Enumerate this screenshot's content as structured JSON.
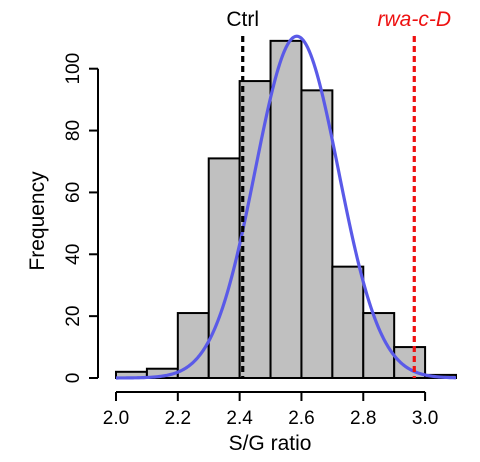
{
  "chart_data": {
    "type": "bar",
    "xlabel": "S/G ratio",
    "ylabel": "Frequency",
    "xlim": [
      2.0,
      3.1
    ],
    "ylim": [
      0,
      110
    ],
    "bin_width": 0.1,
    "bins": [
      {
        "start": 2.0,
        "end": 2.1,
        "value": 2
      },
      {
        "start": 2.1,
        "end": 2.2,
        "value": 3
      },
      {
        "start": 2.2,
        "end": 2.3,
        "value": 21
      },
      {
        "start": 2.3,
        "end": 2.4,
        "value": 71
      },
      {
        "start": 2.4,
        "end": 2.5,
        "value": 96
      },
      {
        "start": 2.5,
        "end": 2.6,
        "value": 109
      },
      {
        "start": 2.6,
        "end": 2.7,
        "value": 93
      },
      {
        "start": 2.7,
        "end": 2.8,
        "value": 36
      },
      {
        "start": 2.8,
        "end": 2.9,
        "value": 21
      },
      {
        "start": 2.9,
        "end": 3.0,
        "value": 10
      },
      {
        "start": 3.0,
        "end": 3.1,
        "value": 1
      }
    ],
    "x_ticks": [
      {
        "value": 2.0,
        "label": "2.0"
      },
      {
        "value": 2.2,
        "label": "2.2"
      },
      {
        "value": 2.4,
        "label": "2.4"
      },
      {
        "value": 2.6,
        "label": "2.6"
      },
      {
        "value": 2.8,
        "label": "2.8"
      },
      {
        "value": 3.0,
        "label": "3.0"
      }
    ],
    "y_ticks": [
      {
        "value": 0,
        "label": "0"
      },
      {
        "value": 20,
        "label": "20"
      },
      {
        "value": 40,
        "label": "40"
      },
      {
        "value": 60,
        "label": "60"
      },
      {
        "value": 80,
        "label": "80"
      },
      {
        "value": 100,
        "label": "100"
      }
    ],
    "fit_curve": {
      "type": "normal",
      "mean": 2.585,
      "peak": 110.5,
      "sd": 0.135,
      "color": "#5a5ae8"
    },
    "reference_lines": [
      {
        "x": 2.41,
        "label": "Ctrl",
        "color": "#000000",
        "italic": false
      },
      {
        "x": 2.965,
        "label": "rwa-c-D",
        "color": "#ee1111",
        "italic": true
      }
    ],
    "grid": false,
    "legend": "none"
  }
}
